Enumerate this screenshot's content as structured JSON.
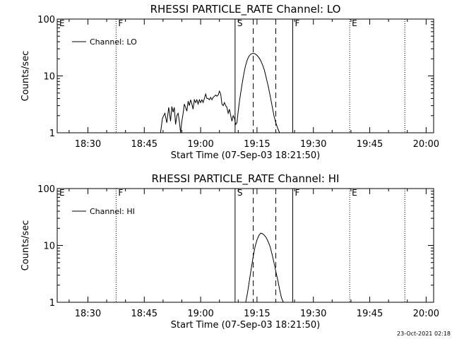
{
  "chart_data": [
    {
      "type": "line",
      "title": "RHESSI PARTICLE_RATE Channel: LO",
      "xlabel": "Start Time (07-Sep-03 18:21:50)",
      "ylabel": "Counts/sec",
      "y_scale": "log",
      "ylim": [
        1,
        100
      ],
      "xlim": [
        "18:21:50",
        "20:02:00"
      ],
      "x_tick_labels": [
        "18:30",
        "18:45",
        "19:00",
        "19:15",
        "19:30",
        "19:45",
        "20:00"
      ],
      "y_tick_labels": [
        "1",
        "10",
        "100"
      ],
      "legend": {
        "label": "Channel: LO",
        "placement": "top-left"
      },
      "event_markers": [
        {
          "label": "E",
          "time": "18:21:50",
          "style": "none"
        },
        {
          "label": "F",
          "time": "18:37:30",
          "style": "dotted"
        },
        {
          "label": "S",
          "time": "19:09:10",
          "style": "solid"
        },
        {
          "label": "",
          "time": "19:14:00",
          "style": "dashed"
        },
        {
          "label": "",
          "time": "19:20:00",
          "style": "dashed"
        },
        {
          "label": "F",
          "time": "19:24:30",
          "style": "solid"
        },
        {
          "label": "E",
          "time": "19:39:40",
          "style": "dotted"
        },
        {
          "label": "",
          "time": "19:54:20",
          "style": "dotted"
        }
      ],
      "series": [
        {
          "name": "Channel: LO",
          "x": [
            "18:49:20",
            "18:49:50",
            "18:50:30",
            "18:51:00",
            "18:51:30",
            "18:52:00",
            "18:52:20",
            "18:52:40",
            "18:53:00",
            "18:53:20",
            "18:53:40",
            "18:54:00",
            "18:54:20",
            "18:54:40",
            "18:55:00",
            "18:55:20",
            "18:55:40",
            "18:56:00",
            "18:56:20",
            "18:56:40",
            "18:57:00",
            "18:57:20",
            "18:57:40",
            "18:58:00",
            "18:58:20",
            "18:58:40",
            "18:59:00",
            "18:59:20",
            "18:59:40",
            "19:00:00",
            "19:00:20",
            "19:00:40",
            "19:01:00",
            "19:01:20",
            "19:01:40",
            "19:02:00",
            "19:02:20",
            "19:02:40",
            "19:03:00",
            "19:03:20",
            "19:03:40",
            "19:04:00",
            "19:04:20",
            "19:04:40",
            "19:05:00",
            "19:05:20",
            "19:05:40",
            "19:06:00",
            "19:06:20",
            "19:06:40",
            "19:07:00",
            "19:07:20",
            "19:07:40",
            "19:08:00",
            "19:08:20",
            "19:08:40",
            "19:09:00",
            "19:09:20",
            "19:09:40",
            "19:10:00",
            "19:10:20",
            "19:10:40",
            "19:11:00",
            "19:11:20",
            "19:11:40",
            "19:12:00",
            "19:12:20",
            "19:12:40",
            "19:13:00",
            "19:13:30",
            "19:14:00",
            "19:14:30",
            "19:15:00",
            "19:15:30",
            "19:16:00",
            "19:16:30",
            "19:17:00",
            "19:17:30",
            "19:18:00",
            "19:18:30",
            "19:19:00",
            "19:19:30",
            "19:20:00",
            "19:20:30",
            "19:21:00",
            "19:21:30",
            "19:22:00"
          ],
          "y": [
            1.0,
            1.8,
            2.2,
            1.5,
            2.8,
            1.6,
            2.9,
            2.3,
            2.8,
            1.4,
            2.0,
            2.2,
            1.6,
            1.0,
            1.6,
            2.2,
            3.2,
            2.8,
            2.4,
            3.6,
            3.0,
            3.8,
            3.2,
            2.6,
            3.8,
            3.4,
            3.8,
            3.2,
            3.8,
            3.4,
            3.8,
            3.4,
            4.0,
            4.8,
            4.0,
            4.0,
            3.8,
            4.2,
            3.8,
            4.2,
            4.4,
            4.6,
            4.4,
            4.6,
            5.4,
            4.8,
            3.2,
            3.0,
            3.4,
            3.0,
            2.8,
            2.2,
            2.6,
            2.0,
            1.6,
            2.0,
            1.8,
            1.4,
            1.5,
            2.4,
            3.6,
            5.0,
            7.0,
            9.5,
            12.5,
            15.5,
            18.5,
            21.0,
            23.0,
            24.5,
            25.0,
            24.5,
            23.0,
            21.0,
            18.5,
            15.5,
            12.5,
            9.0,
            6.5,
            4.5,
            3.0,
            2.0,
            1.5,
            1.2,
            1.0,
            1.0,
            1.0
          ]
        }
      ]
    },
    {
      "type": "line",
      "title": "RHESSI PARTICLE_RATE Channel: HI",
      "xlabel": "Start Time (07-Sep-03 18:21:50)",
      "ylabel": "Counts/sec",
      "y_scale": "log",
      "ylim": [
        1,
        100
      ],
      "xlim": [
        "18:21:50",
        "20:02:00"
      ],
      "x_tick_labels": [
        "18:30",
        "18:45",
        "19:00",
        "19:15",
        "19:30",
        "19:45",
        "20:00"
      ],
      "y_tick_labels": [
        "1",
        "10",
        "100"
      ],
      "legend": {
        "label": "Channel: HI",
        "placement": "top-left"
      },
      "event_markers": [
        {
          "label": "E",
          "time": "18:21:50",
          "style": "none"
        },
        {
          "label": "F",
          "time": "18:37:30",
          "style": "dotted"
        },
        {
          "label": "S",
          "time": "19:09:10",
          "style": "solid"
        },
        {
          "label": "",
          "time": "19:14:00",
          "style": "dashed"
        },
        {
          "label": "",
          "time": "19:20:00",
          "style": "dashed"
        },
        {
          "label": "F",
          "time": "19:24:30",
          "style": "solid"
        },
        {
          "label": "E",
          "time": "19:39:40",
          "style": "dotted"
        },
        {
          "label": "",
          "time": "19:54:20",
          "style": "dotted"
        }
      ],
      "series": [
        {
          "name": "Channel: HI",
          "x": [
            "19:12:00",
            "19:12:30",
            "19:13:00",
            "19:13:30",
            "19:14:00",
            "19:14:30",
            "19:15:00",
            "19:15:30",
            "19:16:00",
            "19:16:30",
            "19:17:00",
            "19:17:30",
            "19:18:00",
            "19:18:30",
            "19:19:00",
            "19:19:30",
            "19:20:00",
            "19:20:30",
            "19:21:00",
            "19:21:30",
            "19:22:00"
          ],
          "y": [
            1.0,
            1.5,
            2.5,
            4.0,
            6.5,
            9.5,
            12.5,
            15.0,
            16.5,
            16.0,
            15.0,
            13.5,
            11.5,
            9.5,
            7.0,
            5.0,
            3.5,
            2.5,
            1.7,
            1.2,
            1.0
          ]
        }
      ]
    }
  ],
  "timestamp": "23-Oct-2021 02:18"
}
